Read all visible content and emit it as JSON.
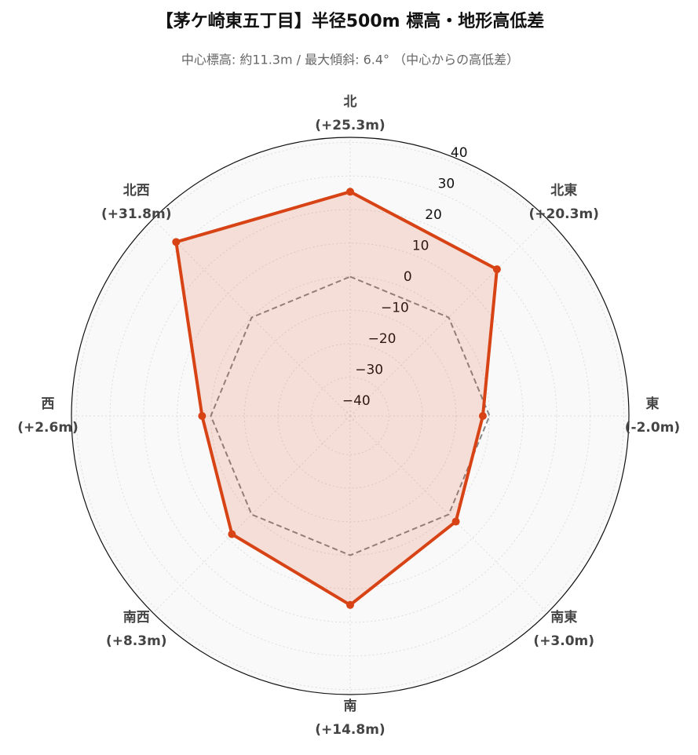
{
  "chart_data": {
    "type": "radar",
    "title": "【茅ケ崎東五丁目】半径500m 標高・地形高低差",
    "subtitle": "中心標高: 約11.3m / 最大傾斜: 6.4° （中心からの高低差）",
    "categories": [
      "北",
      "北東",
      "東",
      "南東",
      "南",
      "南西",
      "西",
      "北西"
    ],
    "values": [
      25.3,
      20.3,
      -2.0,
      3.0,
      14.8,
      8.3,
      2.6,
      31.8
    ],
    "value_labels": [
      "(+25.3m)",
      "(+20.3m)",
      "(-2.0m)",
      "(+3.0m)",
      "(+14.8m)",
      "(+8.3m)",
      "(+2.6m)",
      "(+31.8m)"
    ],
    "color": "#d84315",
    "reference_value": 0,
    "ylim": [
      -41.5,
      41.5
    ],
    "yticks": [
      {
        "value": -40,
        "label": "−40"
      },
      {
        "value": -30,
        "label": "−30"
      },
      {
        "value": -20,
        "label": "−20"
      },
      {
        "value": -10,
        "label": "−10"
      },
      0,
      10,
      20,
      30,
      40
    ],
    "grid": true
  }
}
